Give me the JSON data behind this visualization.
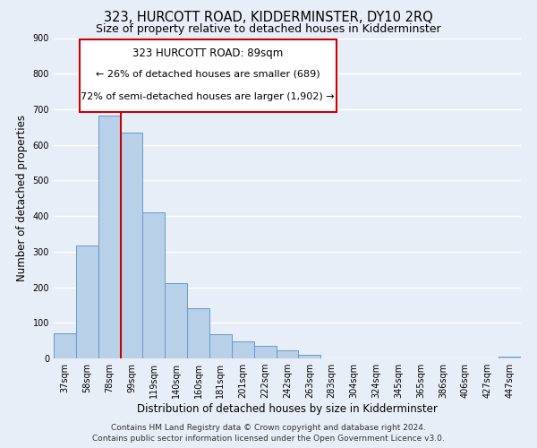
{
  "title": "323, HURCOTT ROAD, KIDDERMINSTER, DY10 2RQ",
  "subtitle": "Size of property relative to detached houses in Kidderminster",
  "xlabel": "Distribution of detached houses by size in Kidderminster",
  "ylabel": "Number of detached properties",
  "bar_labels": [
    "37sqm",
    "58sqm",
    "78sqm",
    "99sqm",
    "119sqm",
    "140sqm",
    "160sqm",
    "181sqm",
    "201sqm",
    "222sqm",
    "242sqm",
    "263sqm",
    "283sqm",
    "304sqm",
    "324sqm",
    "345sqm",
    "365sqm",
    "386sqm",
    "406sqm",
    "427sqm",
    "447sqm"
  ],
  "bar_values": [
    70,
    318,
    683,
    634,
    410,
    212,
    140,
    68,
    48,
    36,
    22,
    10,
    0,
    0,
    0,
    0,
    0,
    0,
    0,
    0,
    5
  ],
  "bar_color": "#b8d0e8",
  "bar_edge_color": "#6699cc",
  "vline_color": "#cc0000",
  "vline_pos": 2.5,
  "ylim": [
    0,
    900
  ],
  "yticks": [
    0,
    100,
    200,
    300,
    400,
    500,
    600,
    700,
    800,
    900
  ],
  "annotation_title": "323 HURCOTT ROAD: 89sqm",
  "annotation_line1": "← 26% of detached houses are smaller (689)",
  "annotation_line2": "72% of semi-detached houses are larger (1,902) →",
  "footer_line1": "Contains HM Land Registry data © Crown copyright and database right 2024.",
  "footer_line2": "Contains public sector information licensed under the Open Government Licence v3.0.",
  "background_color": "#e8eef8",
  "plot_background_color": "#e8eef8",
  "grid_color": "#ffffff",
  "title_fontsize": 10.5,
  "subtitle_fontsize": 9,
  "xlabel_fontsize": 8.5,
  "ylabel_fontsize": 8.5,
  "tick_fontsize": 7,
  "annot_fontsize_title": 8.5,
  "annot_fontsize_body": 8,
  "footer_fontsize": 6.5
}
